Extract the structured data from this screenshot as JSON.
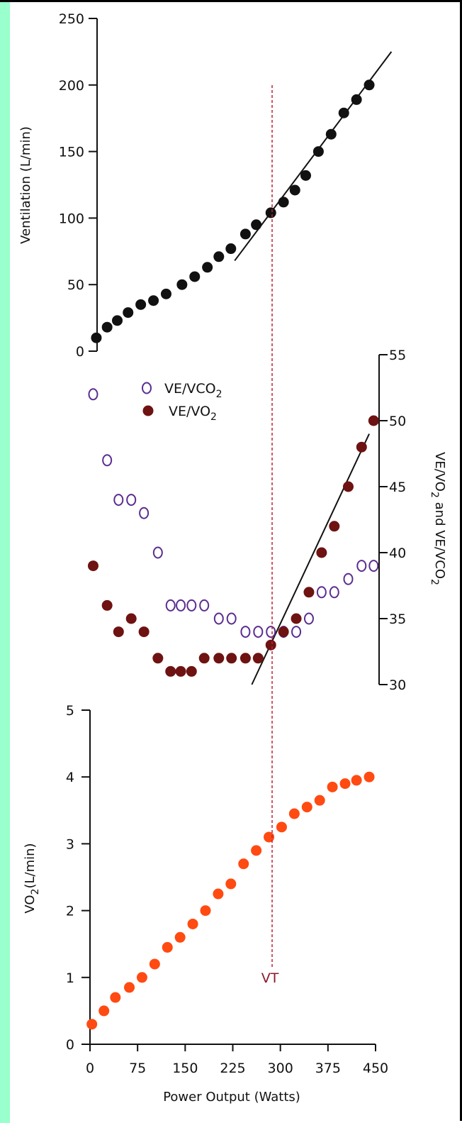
{
  "colors": {
    "side_band": "#99ffcc",
    "ventilation_points": "#111111",
    "ve_vco2_points": "#5b2d91",
    "ve_vo2_points": "#6e1212",
    "vo2_points": "#ff4a12",
    "vt_line": "#c0203a",
    "vt_label": "#8b1a2b",
    "axis": "#111111"
  },
  "chart_data": [
    {
      "type": "scatter",
      "panel": "ventilation",
      "ylabel": "Ventilation (L/min)",
      "ylim": [
        0,
        250
      ],
      "yticks": [
        "250",
        "200",
        "150",
        "100",
        "50",
        "0"
      ],
      "xlim": [
        0,
        450
      ],
      "grid": false,
      "series": [
        {
          "x": [
            10,
            27,
            43,
            60,
            80,
            100,
            120,
            145,
            165,
            185,
            203,
            222,
            245,
            262,
            285,
            305,
            323,
            340,
            360,
            380,
            400,
            420,
            440
          ],
          "y": [
            10,
            18,
            23,
            29,
            35,
            38,
            43,
            50,
            56,
            63,
            71,
            77,
            88,
            95,
            104,
            112,
            121,
            132,
            150,
            163,
            179,
            189,
            200
          ]
        }
      ],
      "trend_lines": [
        {
          "x": [
            228,
            475
          ],
          "y": [
            68,
            225
          ]
        }
      ]
    },
    {
      "type": "scatter",
      "panel": "ventilatory-equivalents",
      "ylabel": "VE/VO2 and VE/VCO2",
      "ylim": [
        30,
        55
      ],
      "yticks": [
        "55",
        "50",
        "45",
        "40",
        "35",
        "30"
      ],
      "y_axis_side": "right",
      "xlim": [
        0,
        450
      ],
      "grid": false,
      "legend_position": "top-left",
      "series": [
        {
          "name": "VE/VCO2",
          "marker": "open-circle",
          "x": [
            5,
            27,
            45,
            65,
            85,
            107,
            127,
            143,
            160,
            180,
            203,
            223,
            245,
            265,
            285,
            305,
            325,
            345,
            365,
            385,
            407,
            428,
            447
          ],
          "y": [
            52,
            47,
            44,
            44,
            43,
            40,
            36,
            36,
            36,
            36,
            35,
            35,
            34,
            34,
            34,
            34,
            34,
            35,
            37,
            37,
            38,
            39,
            39
          ]
        },
        {
          "name": "VE/VO2",
          "marker": "filled-circle",
          "x": [
            5,
            27,
            45,
            65,
            85,
            107,
            127,
            143,
            160,
            180,
            203,
            223,
            245,
            265,
            285,
            305,
            325,
            345,
            365,
            385,
            407,
            428,
            447
          ],
          "y": [
            39,
            36,
            34,
            35,
            34,
            32,
            31,
            31,
            31,
            32,
            32,
            32,
            32,
            32,
            33,
            34,
            35,
            37,
            40,
            42,
            45,
            48,
            50
          ]
        }
      ],
      "trend_lines": [
        {
          "x": [
            255,
            440
          ],
          "y": [
            30,
            49
          ]
        }
      ]
    },
    {
      "type": "scatter",
      "panel": "vo2",
      "ylabel": "VO2(L/min)",
      "xlabel": "Power Output (Watts)",
      "ylim": [
        0,
        5
      ],
      "yticks": [
        "5",
        "4",
        "3",
        "2",
        "1",
        "0"
      ],
      "xlim": [
        0,
        450
      ],
      "xticks": [
        "0",
        "75",
        "150",
        "225",
        "300",
        "375",
        "450"
      ],
      "grid": false,
      "series": [
        {
          "x": [
            3,
            22,
            40,
            62,
            82,
            102,
            122,
            142,
            162,
            182,
            202,
            222,
            242,
            262,
            282,
            302,
            322,
            342,
            362,
            382,
            402,
            420,
            440
          ],
          "y": [
            0.3,
            0.5,
            0.7,
            0.85,
            1.0,
            1.2,
            1.45,
            1.6,
            1.8,
            2.0,
            2.25,
            2.4,
            2.7,
            2.9,
            3.1,
            3.25,
            3.45,
            3.55,
            3.65,
            3.85,
            3.9,
            3.95,
            4.0
          ]
        }
      ]
    }
  ],
  "threshold": {
    "x": 287,
    "label": "VT"
  }
}
